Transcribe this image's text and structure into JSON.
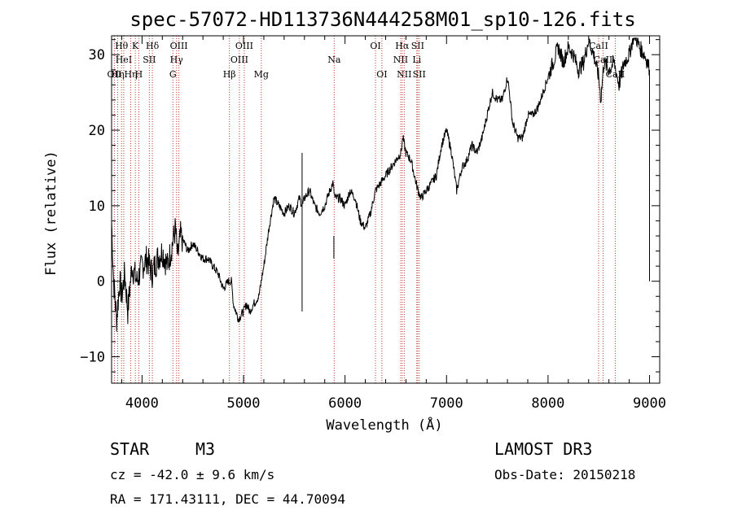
{
  "chart_data": {
    "type": "line",
    "title": "spec-57072-HD113736N444258M01_sp10-126.fits",
    "xlabel": "Wavelength (Å)",
    "ylabel": "Flux (relative)",
    "xlim": [
      3700,
      9100
    ],
    "ylim": [
      -13.5,
      32.5
    ],
    "xticks": [
      4000,
      5000,
      6000,
      7000,
      8000,
      9000
    ],
    "yticks": [
      -10,
      0,
      10,
      20,
      30
    ],
    "series": [
      {
        "name": "spectrum",
        "x": [
          3700,
          3720,
          3750,
          3780,
          3800,
          3830,
          3860,
          3900,
          3950,
          4000,
          4050,
          4100,
          4150,
          4200,
          4250,
          4300,
          4330,
          4350,
          4380,
          4420,
          4450,
          4500,
          4550,
          4600,
          4650,
          4700,
          4750,
          4800,
          4850,
          4880,
          4900,
          4950,
          5000,
          5030,
          5060,
          5100,
          5150,
          5200,
          5250,
          5300,
          5350,
          5400,
          5450,
          5500,
          5550,
          5580,
          5600,
          5650,
          5700,
          5750,
          5800,
          5850,
          5880,
          5900,
          5920,
          5950,
          6000,
          6050,
          6100,
          6150,
          6200,
          6250,
          6300,
          6350,
          6400,
          6450,
          6500,
          6550,
          6570,
          6600,
          6650,
          6700,
          6720,
          6750,
          6800,
          6850,
          6900,
          6950,
          7000,
          7050,
          7100,
          7150,
          7200,
          7250,
          7300,
          7350,
          7400,
          7450,
          7500,
          7550,
          7600,
          7620,
          7650,
          7700,
          7750,
          7800,
          7850,
          7900,
          7950,
          8000,
          8050,
          8100,
          8150,
          8200,
          8250,
          8300,
          8350,
          8400,
          8450,
          8500,
          8520,
          8550,
          8600,
          8650,
          8700,
          8750,
          8800,
          8850,
          8900,
          8950,
          8980,
          9000
        ],
        "y": [
          8,
          0,
          -5,
          0,
          -2,
          1,
          -4,
          2,
          0,
          2,
          3,
          1,
          3,
          4,
          2,
          5,
          7,
          3,
          6,
          5,
          4,
          5,
          4,
          3,
          3,
          2,
          1,
          -1,
          0,
          0,
          -3,
          -5,
          -4,
          -3,
          -4,
          -3,
          -2,
          2,
          7,
          11,
          10,
          9,
          10,
          9,
          11,
          10,
          11,
          12,
          10,
          9,
          10,
          12,
          13,
          11,
          11,
          11,
          10,
          12,
          11,
          8,
          7,
          9,
          12,
          13,
          14,
          15,
          16,
          17,
          19,
          17,
          16,
          13,
          12,
          11,
          12,
          13,
          14,
          18,
          20,
          17,
          12,
          15,
          16,
          18,
          17,
          19,
          22,
          25,
          24,
          24,
          27,
          25,
          21,
          19,
          19,
          22,
          22,
          23,
          25,
          27,
          29,
          31,
          29,
          31,
          30,
          28,
          29,
          32,
          30,
          27,
          24,
          29,
          28,
          29,
          26,
          29,
          30,
          33,
          31,
          30,
          29,
          28
        ]
      }
    ],
    "spikes": [
      {
        "x": 5577,
        "y": -4,
        "top": 17
      },
      {
        "x": 5890,
        "y": 3,
        "top": 6
      }
    ],
    "line_markers": [
      {
        "x": 3727,
        "label": "OII",
        "row": 3
      },
      {
        "x": 3760,
        "label": "Hη",
        "row": 3
      },
      {
        "x": 3798,
        "label": "Hθ",
        "row": 1
      },
      {
        "x": 3820,
        "label": "HeI",
        "row": 2
      },
      {
        "x": 3889,
        "label": "Hη",
        "row": 3
      },
      {
        "x": 3934,
        "label": "K",
        "row": 1
      },
      {
        "x": 3968,
        "label": "H",
        "row": 3
      },
      {
        "x": 4072,
        "label": "SII",
        "row": 2
      },
      {
        "x": 4102,
        "label": "Hδ",
        "row": 1
      },
      {
        "x": 4304,
        "label": "G",
        "row": 3
      },
      {
        "x": 4340,
        "label": "Hγ",
        "row": 2
      },
      {
        "x": 4363,
        "label": "OIII",
        "row": 1
      },
      {
        "x": 4861,
        "label": "Hβ",
        "row": 3
      },
      {
        "x": 4959,
        "label": "OIII",
        "row": 2
      },
      {
        "x": 5007,
        "label": "OIII",
        "row": 1
      },
      {
        "x": 5175,
        "label": "Mg",
        "row": 3
      },
      {
        "x": 5893,
        "label": "Na",
        "row": 2
      },
      {
        "x": 6300,
        "label": "OI",
        "row": 1
      },
      {
        "x": 6363,
        "label": "OI",
        "row": 3
      },
      {
        "x": 6548,
        "label": "NII",
        "row": 2
      },
      {
        "x": 6563,
        "label": "Hα",
        "row": 1
      },
      {
        "x": 6583,
        "label": "NII",
        "row": 3
      },
      {
        "x": 6707,
        "label": "Li",
        "row": 2
      },
      {
        "x": 6716,
        "label": "SII",
        "row": 1
      },
      {
        "x": 6731,
        "label": "SII",
        "row": 3
      },
      {
        "x": 8498,
        "label": "CaII",
        "row": 1
      },
      {
        "x": 8542,
        "label": "CaII",
        "row": 2
      },
      {
        "x": 8662,
        "label": "CaII",
        "row": 3
      }
    ]
  },
  "info": {
    "object_type": "STAR",
    "subclass": "M3",
    "survey": "LAMOST DR3",
    "cz": "cz = -42.0 ± 9.6 km/s",
    "obs_date": "Obs-Date: 20150218",
    "coords": "RA = 171.43111, DEC =  44.70094"
  },
  "colors": {
    "marker": "#c03a2b",
    "line": "#000000"
  }
}
